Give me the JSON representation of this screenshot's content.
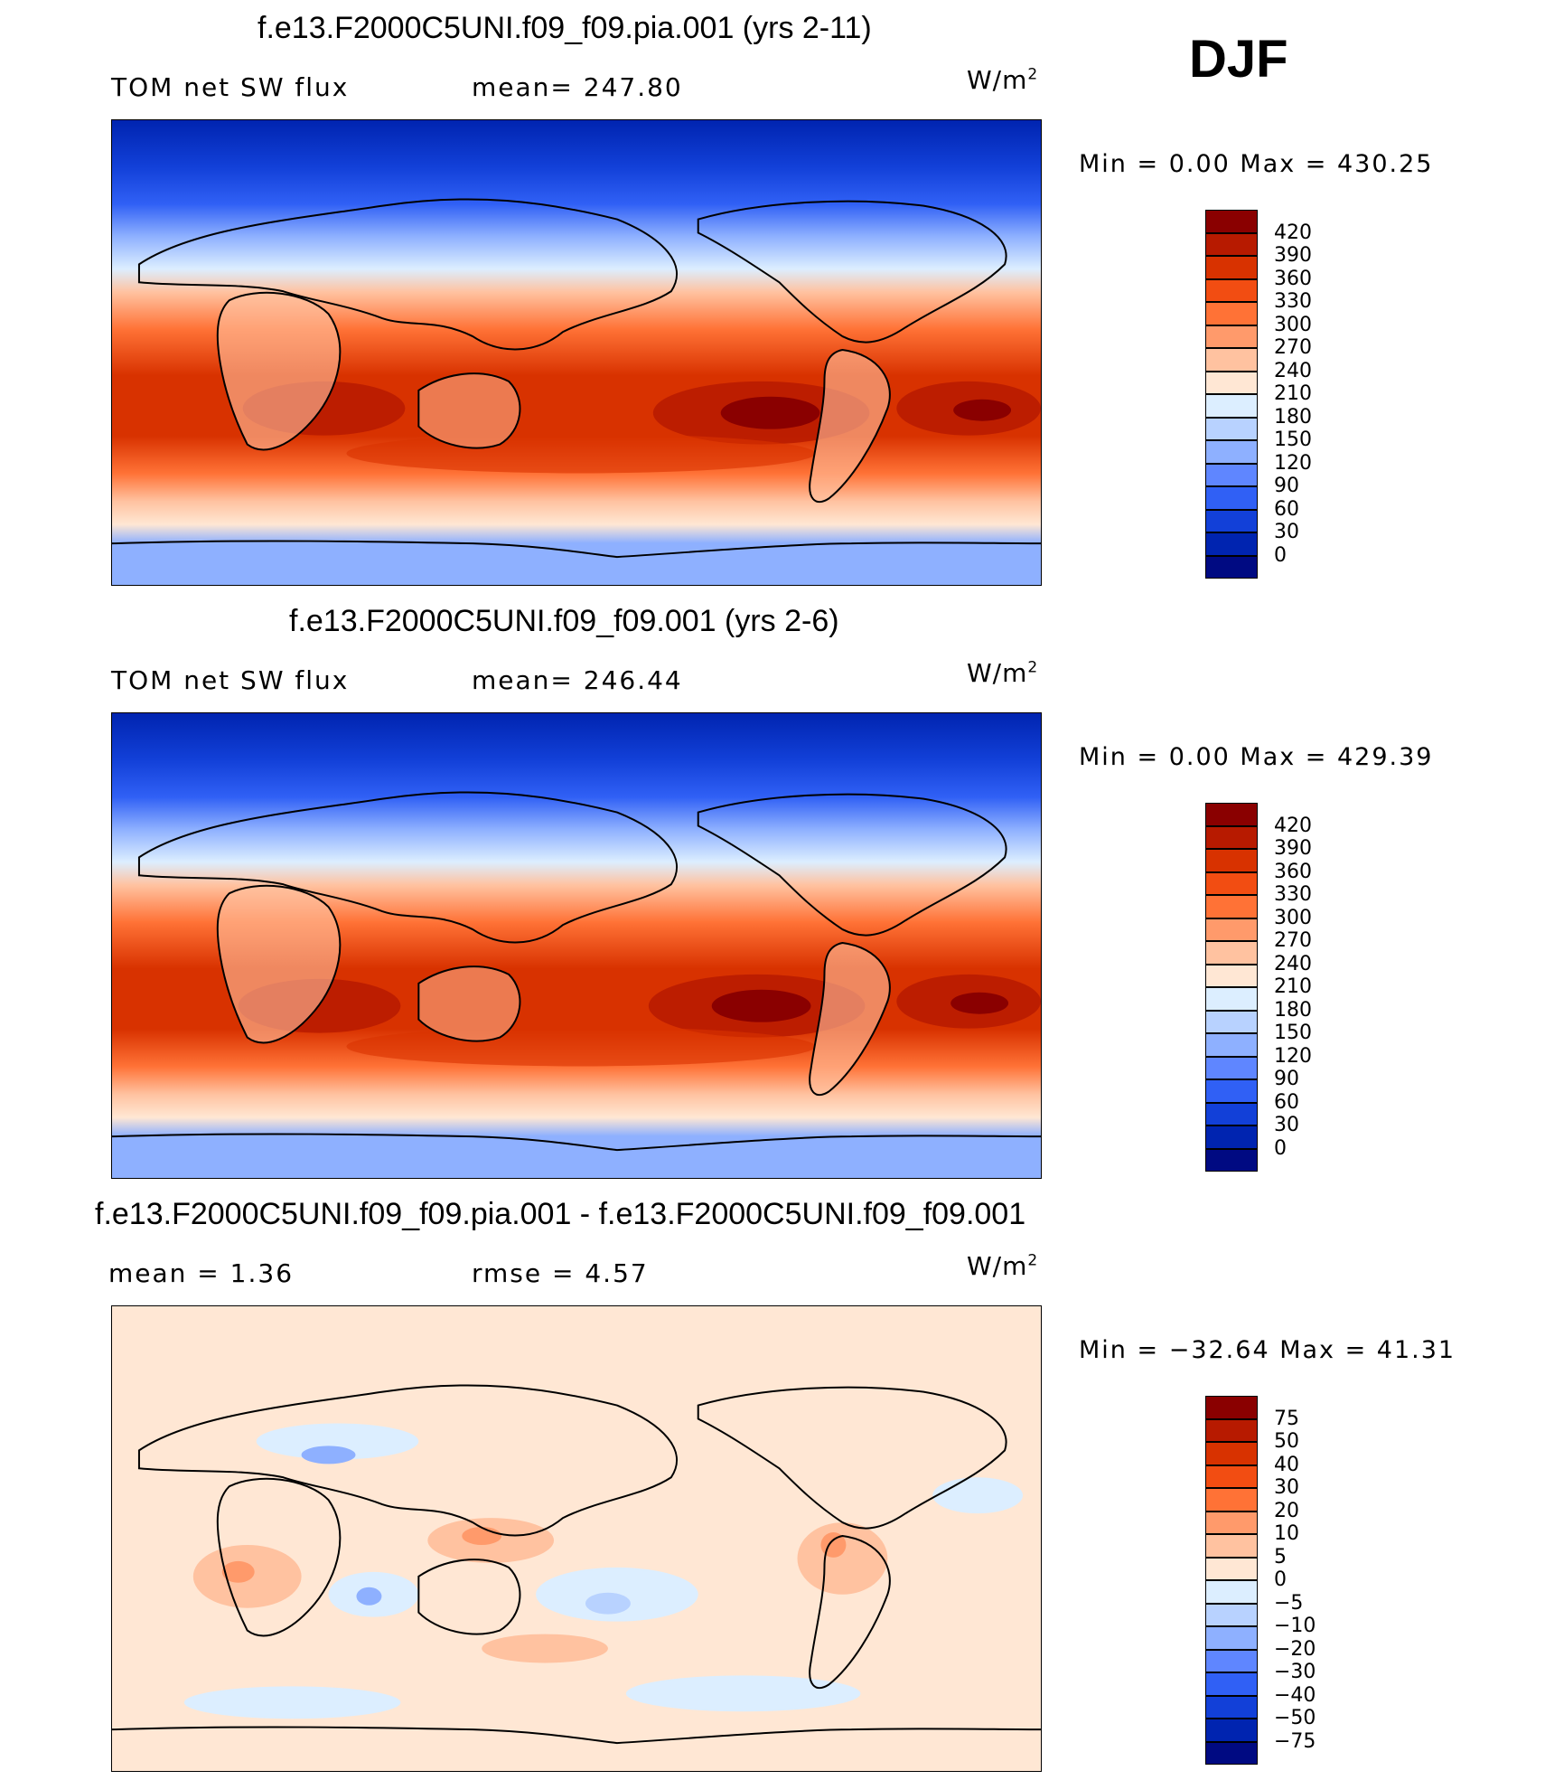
{
  "season": "DJF",
  "panels": [
    {
      "title": "f.e13.F2000C5UNI.f09_f09.pia.001 (yrs 2-11)",
      "left_label": "TOM net SW flux",
      "center_label": "mean=  247.80",
      "units": "W/m",
      "units_sup": "2",
      "min_max": "Min =    0.00 Max = 430.25"
    },
    {
      "title": "f.e13.F2000C5UNI.f09_f09.001 (yrs 2-6)",
      "left_label": "TOM net SW flux",
      "center_label": "mean=  246.44",
      "units": "W/m",
      "units_sup": "2",
      "min_max": "Min =    0.00 Max = 429.39"
    },
    {
      "title": "f.e13.F2000C5UNI.f09_f09.pia.001 - f.e13.F2000C5UNI.f09_f09.001",
      "left_label": "mean =    1.36",
      "center_label": "rmse =     4.57",
      "units": "W/m",
      "units_sup": "2",
      "min_max": "Min = −32.64 Max =  41.31"
    }
  ],
  "chart_data": [
    {
      "type": "heatmap",
      "title": "f.e13.F2000C5UNI.f09_f09.pia.001 (yrs 2-11)",
      "variable": "TOM net SW flux",
      "units": "W/m2",
      "mean": 247.8,
      "min": 0.0,
      "max": 430.25,
      "colorbar_labels": [
        "420",
        "390",
        "360",
        "330",
        "300",
        "270",
        "240",
        "210",
        "180",
        "150",
        "120",
        "90",
        "60",
        "30",
        "0"
      ],
      "colorbar_colors": [
        "#8a0000",
        "#b71a00",
        "#d83200",
        "#f24d12",
        "#ff7236",
        "#ff9a6b",
        "#ffc2a0",
        "#ffe7d4",
        "#dceeff",
        "#b8d2ff",
        "#8eb0ff",
        "#5f86ff",
        "#3060f5",
        "#1240d8",
        "#0024b0",
        "#000a82"
      ]
    },
    {
      "type": "heatmap",
      "title": "f.e13.F2000C5UNI.f09_f09.001 (yrs 2-6)",
      "variable": "TOM net SW flux",
      "units": "W/m2",
      "mean": 246.44,
      "min": 0.0,
      "max": 429.39,
      "colorbar_labels": [
        "420",
        "390",
        "360",
        "330",
        "300",
        "270",
        "240",
        "210",
        "180",
        "150",
        "120",
        "90",
        "60",
        "30",
        "0"
      ],
      "colorbar_colors": [
        "#8a0000",
        "#b71a00",
        "#d83200",
        "#f24d12",
        "#ff7236",
        "#ff9a6b",
        "#ffc2a0",
        "#ffe7d4",
        "#dceeff",
        "#b8d2ff",
        "#8eb0ff",
        "#5f86ff",
        "#3060f5",
        "#1240d8",
        "#0024b0",
        "#000a82"
      ]
    },
    {
      "type": "heatmap",
      "title": "f.e13.F2000C5UNI.f09_f09.pia.001 - f.e13.F2000C5UNI.f09_f09.001",
      "units": "W/m2",
      "mean": 1.36,
      "rmse": 4.57,
      "min": -32.64,
      "max": 41.31,
      "colorbar_labels": [
        "75",
        "50",
        "40",
        "30",
        "20",
        "10",
        "5",
        "0",
        "−5",
        "−10",
        "−20",
        "−30",
        "−40",
        "−50",
        "−75"
      ],
      "colorbar_colors": [
        "#8a0000",
        "#b71a00",
        "#d83200",
        "#f24d12",
        "#ff7236",
        "#ff9a6b",
        "#ffc2a0",
        "#ffe7d4",
        "#dceeff",
        "#b8d2ff",
        "#8eb0ff",
        "#5f86ff",
        "#3060f5",
        "#1240d8",
        "#0024b0",
        "#000a82"
      ]
    }
  ]
}
